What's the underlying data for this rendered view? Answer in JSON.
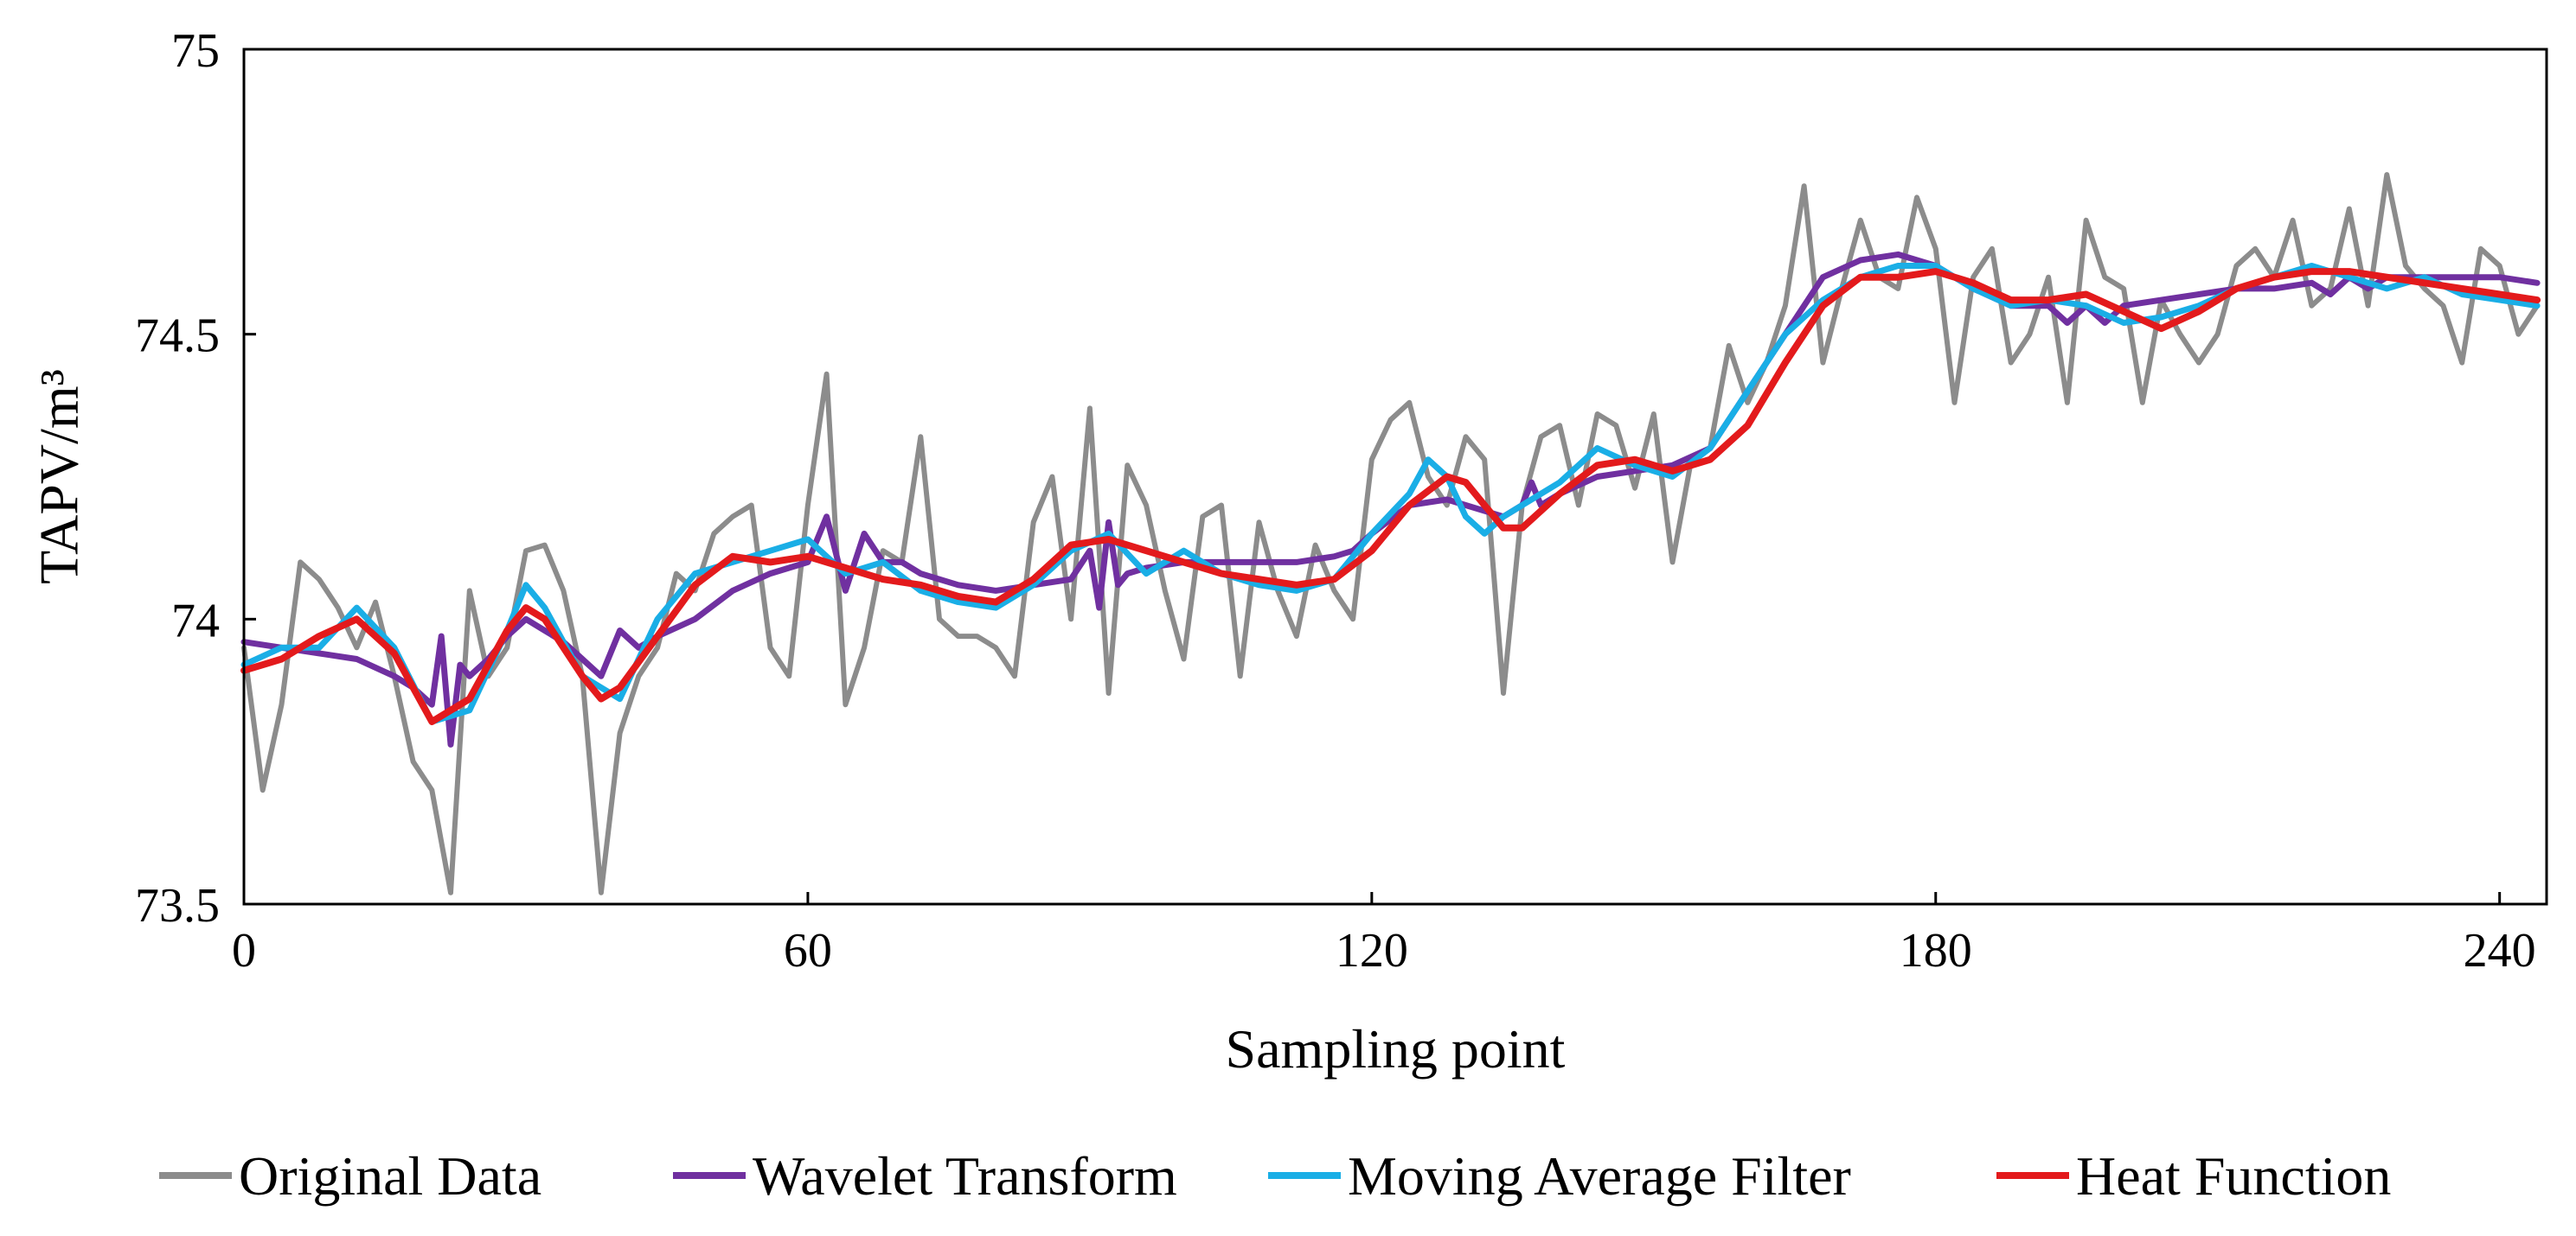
{
  "chart_data": {
    "type": "line",
    "title": "",
    "xlabel": "Sampling point",
    "ylabel": "TAPV/m³",
    "xlim": [
      0,
      245
    ],
    "ylim": [
      73.5,
      75
    ],
    "xticks": [
      0,
      60,
      120,
      180,
      240
    ],
    "yticks": [
      73.5,
      74,
      74.5,
      75
    ],
    "xtick_labels": [
      "0",
      "60",
      "120",
      "180",
      "240"
    ],
    "ytick_labels": [
      "73.5",
      "74",
      "74.5",
      "75"
    ],
    "legend_position": "bottom",
    "grid": false,
    "series": [
      {
        "name": "Original Data",
        "color": "#8c8c8c",
        "x": [
          0,
          2,
          4,
          6,
          8,
          10,
          12,
          14,
          16,
          18,
          20,
          22,
          24,
          26,
          28,
          30,
          32,
          34,
          36,
          38,
          40,
          42,
          44,
          46,
          48,
          50,
          52,
          54,
          56,
          58,
          60,
          62,
          64,
          66,
          68,
          70,
          72,
          74,
          76,
          78,
          80,
          82,
          84,
          86,
          88,
          90,
          92,
          94,
          96,
          98,
          100,
          102,
          104,
          106,
          108,
          110,
          112,
          114,
          116,
          118,
          120,
          122,
          124,
          126,
          128,
          130,
          132,
          134,
          136,
          138,
          140,
          142,
          144,
          146,
          148,
          150,
          152,
          154,
          156,
          158,
          160,
          162,
          164,
          166,
          168,
          170,
          172,
          174,
          176,
          178,
          180,
          182,
          184,
          186,
          188,
          190,
          192,
          194,
          196,
          198,
          200,
          202,
          204,
          206,
          208,
          210,
          212,
          214,
          216,
          218,
          220,
          222,
          224,
          226,
          228,
          230,
          232,
          234,
          236,
          238,
          240,
          242,
          244
        ],
        "values": [
          73.95,
          73.7,
          73.85,
          74.1,
          74.07,
          74.02,
          73.95,
          74.03,
          73.9,
          73.75,
          73.7,
          73.52,
          74.05,
          73.9,
          73.95,
          74.12,
          74.13,
          74.05,
          73.9,
          73.52,
          73.8,
          73.9,
          73.95,
          74.08,
          74.05,
          74.15,
          74.18,
          74.2,
          73.95,
          73.9,
          74.2,
          74.43,
          73.85,
          73.95,
          74.12,
          74.1,
          74.32,
          74.0,
          73.97,
          73.97,
          73.95,
          73.9,
          74.17,
          74.25,
          74.0,
          74.37,
          73.87,
          74.27,
          74.2,
          74.05,
          73.93,
          74.18,
          74.2,
          73.9,
          74.17,
          74.05,
          73.97,
          74.13,
          74.05,
          74.0,
          74.28,
          74.35,
          74.38,
          74.25,
          74.2,
          74.32,
          74.28,
          73.87,
          74.2,
          74.32,
          74.34,
          74.2,
          74.36,
          74.34,
          74.23,
          74.36,
          74.1,
          74.28,
          74.3,
          74.48,
          74.38,
          74.45,
          74.55,
          74.76,
          74.45,
          74.58,
          74.7,
          74.6,
          74.58,
          74.74,
          74.65,
          74.38,
          74.6,
          74.65,
          74.45,
          74.5,
          74.6,
          74.38,
          74.7,
          74.6,
          74.58,
          74.38,
          74.56,
          74.5,
          74.45,
          74.5,
          74.62,
          74.65,
          74.6,
          74.7,
          74.55,
          74.58,
          74.72,
          74.55,
          74.78,
          74.62,
          74.58,
          74.55,
          74.45,
          74.65,
          74.62,
          74.5,
          74.55
        ],
        "width": 6
      },
      {
        "name": "Wavelet Transform",
        "color": "#7030a0",
        "x": [
          0,
          4,
          8,
          12,
          16,
          18,
          20,
          21,
          22,
          23,
          24,
          26,
          28,
          30,
          32,
          34,
          36,
          38,
          40,
          42,
          44,
          48,
          52,
          56,
          60,
          62,
          64,
          66,
          68,
          70,
          72,
          76,
          80,
          84,
          88,
          90,
          91,
          92,
          93,
          94,
          96,
          100,
          104,
          108,
          112,
          116,
          118,
          120,
          124,
          128,
          130,
          134,
          136,
          137,
          138,
          140,
          144,
          148,
          152,
          156,
          160,
          164,
          168,
          172,
          176,
          180,
          184,
          188,
          192,
          194,
          196,
          198,
          200,
          204,
          208,
          212,
          216,
          220,
          222,
          224,
          226,
          228,
          232,
          236,
          240,
          244
        ],
        "values": [
          73.96,
          73.95,
          73.94,
          73.93,
          73.9,
          73.88,
          73.85,
          73.97,
          73.78,
          73.92,
          73.9,
          73.93,
          73.97,
          74.0,
          73.98,
          73.96,
          73.93,
          73.9,
          73.98,
          73.95,
          73.97,
          74.0,
          74.05,
          74.08,
          74.1,
          74.18,
          74.05,
          74.15,
          74.1,
          74.1,
          74.08,
          74.06,
          74.05,
          74.06,
          74.07,
          74.12,
          74.02,
          74.17,
          74.06,
          74.08,
          74.09,
          74.1,
          74.1,
          74.1,
          74.1,
          74.11,
          74.12,
          74.15,
          74.2,
          74.21,
          74.2,
          74.18,
          74.2,
          74.24,
          74.2,
          74.22,
          74.25,
          74.26,
          74.27,
          74.3,
          74.4,
          74.5,
          74.6,
          74.63,
          74.64,
          74.62,
          74.58,
          74.55,
          74.55,
          74.52,
          74.55,
          74.52,
          74.55,
          74.56,
          74.57,
          74.58,
          74.58,
          74.59,
          74.57,
          74.6,
          74.58,
          74.6,
          74.6,
          74.6,
          74.6,
          74.59
        ],
        "width": 7
      },
      {
        "name": "Moving Average Filter",
        "color": "#1aaee6",
        "x": [
          0,
          4,
          8,
          12,
          16,
          20,
          24,
          28,
          30,
          32,
          34,
          36,
          38,
          40,
          44,
          48,
          52,
          56,
          60,
          64,
          68,
          72,
          76,
          80,
          84,
          88,
          92,
          96,
          100,
          104,
          108,
          112,
          116,
          120,
          124,
          126,
          128,
          130,
          132,
          134,
          136,
          140,
          144,
          148,
          152,
          156,
          160,
          164,
          168,
          172,
          176,
          180,
          184,
          188,
          192,
          196,
          200,
          204,
          208,
          212,
          216,
          220,
          224,
          228,
          232,
          236,
          240,
          244
        ],
        "values": [
          73.92,
          73.95,
          73.95,
          74.02,
          73.95,
          73.82,
          73.84,
          73.98,
          74.06,
          74.02,
          73.96,
          73.9,
          73.88,
          73.86,
          74.0,
          74.08,
          74.1,
          74.12,
          74.14,
          74.08,
          74.1,
          74.05,
          74.03,
          74.02,
          74.06,
          74.12,
          74.15,
          74.08,
          74.12,
          74.08,
          74.06,
          74.05,
          74.07,
          74.15,
          74.22,
          74.28,
          74.25,
          74.18,
          74.15,
          74.18,
          74.2,
          74.24,
          74.3,
          74.27,
          74.25,
          74.3,
          74.4,
          74.5,
          74.56,
          74.6,
          74.62,
          74.62,
          74.58,
          74.55,
          74.56,
          74.55,
          74.52,
          74.53,
          74.55,
          74.58,
          74.6,
          74.62,
          74.6,
          74.58,
          74.6,
          74.57,
          74.56,
          74.55
        ],
        "width": 7
      },
      {
        "name": "Heat Function",
        "color": "#e31a1c",
        "x": [
          0,
          4,
          8,
          12,
          16,
          20,
          24,
          28,
          30,
          32,
          36,
          38,
          40,
          44,
          48,
          52,
          56,
          60,
          64,
          68,
          72,
          76,
          80,
          84,
          88,
          92,
          96,
          100,
          104,
          108,
          112,
          116,
          120,
          124,
          128,
          130,
          132,
          134,
          136,
          140,
          144,
          148,
          152,
          156,
          160,
          164,
          168,
          172,
          176,
          180,
          184,
          188,
          192,
          196,
          200,
          204,
          208,
          212,
          216,
          220,
          224,
          228,
          232,
          236,
          240,
          244
        ],
        "values": [
          73.91,
          73.93,
          73.97,
          74.0,
          73.94,
          73.82,
          73.86,
          73.98,
          74.02,
          74.0,
          73.9,
          73.86,
          73.88,
          73.97,
          74.06,
          74.11,
          74.1,
          74.11,
          74.09,
          74.07,
          74.06,
          74.04,
          74.03,
          74.07,
          74.13,
          74.14,
          74.12,
          74.1,
          74.08,
          74.07,
          74.06,
          74.07,
          74.12,
          74.2,
          74.25,
          74.24,
          74.2,
          74.16,
          74.16,
          74.22,
          74.27,
          74.28,
          74.26,
          74.28,
          74.34,
          74.45,
          74.55,
          74.6,
          74.6,
          74.61,
          74.59,
          74.56,
          74.56,
          74.57,
          74.54,
          74.51,
          74.54,
          74.58,
          74.6,
          74.61,
          74.61,
          74.6,
          74.59,
          74.58,
          74.57,
          74.56
        ],
        "width": 8
      }
    ]
  }
}
